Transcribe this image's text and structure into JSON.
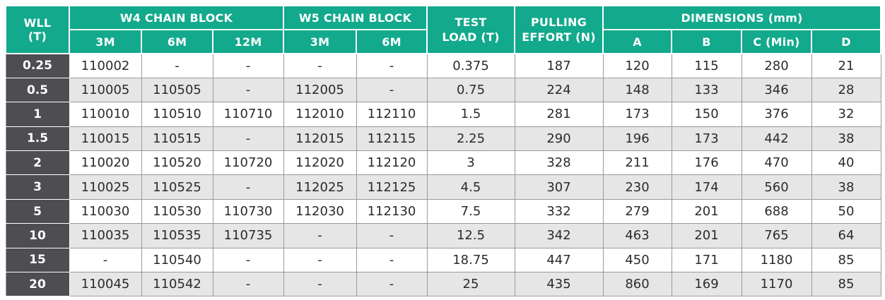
{
  "headers": {
    "wll": "WLL\n(T)",
    "w4": "W4 CHAIN BLOCK",
    "w5": "W5 CHAIN BLOCK",
    "test_load": "TEST\nLOAD (T)",
    "pulling_effort": "PULLING\nEFFORT (N)",
    "dimensions": "DIMENSIONS (mm)",
    "w4_3m": "3M",
    "w4_6m": "6M",
    "w4_12m": "12M",
    "w5_3m": "3M",
    "w5_6m": "6M",
    "dim_a": "A",
    "dim_b": "B",
    "dim_c": "C (Min)",
    "dim_d": "D"
  },
  "rows": [
    [
      "0.25",
      "110002",
      "-",
      "-",
      "-",
      "-",
      "0.375",
      "187",
      "120",
      "115",
      "280",
      "21"
    ],
    [
      "0.5",
      "110005",
      "110505",
      "-",
      "112005",
      "-",
      "0.75",
      "224",
      "148",
      "133",
      "346",
      "28"
    ],
    [
      "1",
      "110010",
      "110510",
      "110710",
      "112010",
      "112110",
      "1.5",
      "281",
      "173",
      "150",
      "376",
      "32"
    ],
    [
      "1.5",
      "110015",
      "110515",
      "-",
      "112015",
      "112115",
      "2.25",
      "290",
      "196",
      "173",
      "442",
      "38"
    ],
    [
      "2",
      "110020",
      "110520",
      "110720",
      "112020",
      "112120",
      "3",
      "328",
      "211",
      "176",
      "470",
      "40"
    ],
    [
      "3",
      "110025",
      "110525",
      "-",
      "112025",
      "112125",
      "4.5",
      "307",
      "230",
      "174",
      "560",
      "38"
    ],
    [
      "5",
      "110030",
      "110530",
      "110730",
      "112030",
      "112130",
      "7.5",
      "332",
      "279",
      "201",
      "688",
      "50"
    ],
    [
      "10",
      "110035",
      "110535",
      "110735",
      "-",
      "-",
      "12.5",
      "342",
      "463",
      "201",
      "765",
      "64"
    ],
    [
      "15",
      "-",
      "110540",
      "-",
      "-",
      "-",
      "18.75",
      "447",
      "450",
      "171",
      "1180",
      "85"
    ],
    [
      "20",
      "110045",
      "110542",
      "-",
      "-",
      "-",
      "25",
      "435",
      "860",
      "169",
      "1170",
      "85"
    ]
  ],
  "colors": {
    "header_green": "#12a98c",
    "wll_column": "#4d4d52",
    "alt_row": "#e6e6e6"
  }
}
